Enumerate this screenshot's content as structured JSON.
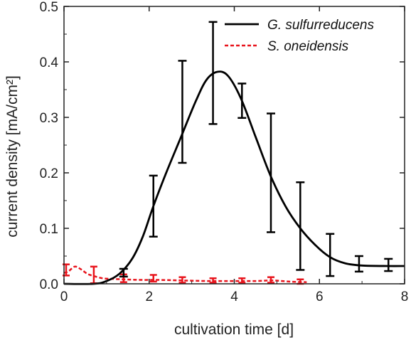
{
  "chart_data": {
    "type": "line",
    "xlabel": "cultivation time [d]",
    "ylabel": "current density [mA/cm²]",
    "xlim": [
      0,
      8
    ],
    "ylim": [
      0,
      0.5
    ],
    "x_ticks": [
      "0",
      "2",
      "4",
      "6",
      "8"
    ],
    "y_ticks": [
      "0.0",
      "0.1",
      "0.2",
      "0.3",
      "0.4",
      "0.5"
    ],
    "grid": false,
    "legend_position": "top-right",
    "series": [
      {
        "name": "G. sulfurreducens",
        "style": "solid",
        "color": "#000000",
        "curve": [
          [
            0,
            0
          ],
          [
            0.7,
            0.0
          ],
          [
            1.0,
            0.005
          ],
          [
            1.3,
            0.018
          ],
          [
            1.6,
            0.045
          ],
          [
            1.85,
            0.085
          ],
          [
            2.1,
            0.14
          ],
          [
            2.4,
            0.2
          ],
          [
            2.75,
            0.265
          ],
          [
            3.1,
            0.33
          ],
          [
            3.35,
            0.368
          ],
          [
            3.6,
            0.382
          ],
          [
            3.85,
            0.375
          ],
          [
            4.15,
            0.335
          ],
          [
            4.5,
            0.265
          ],
          [
            4.85,
            0.195
          ],
          [
            5.2,
            0.14
          ],
          [
            5.55,
            0.1
          ],
          [
            5.9,
            0.07
          ],
          [
            6.25,
            0.048
          ],
          [
            6.6,
            0.037
          ],
          [
            7.0,
            0.033
          ],
          [
            7.6,
            0.032
          ],
          [
            8.0,
            0.032
          ]
        ],
        "points": [
          {
            "x": 1.4,
            "y": 0.02,
            "err": 0.007
          },
          {
            "x": 2.1,
            "y": 0.14,
            "err": 0.055
          },
          {
            "x": 2.78,
            "y": 0.31,
            "err": 0.092
          },
          {
            "x": 3.5,
            "y": 0.38,
            "err": 0.092
          },
          {
            "x": 4.18,
            "y": 0.33,
            "err": 0.031
          },
          {
            "x": 4.86,
            "y": 0.2,
            "err": 0.107
          },
          {
            "x": 5.55,
            "y": 0.104,
            "err": 0.079
          },
          {
            "x": 6.25,
            "y": 0.052,
            "err": 0.038
          },
          {
            "x": 6.93,
            "y": 0.036,
            "err": 0.014
          },
          {
            "x": 7.62,
            "y": 0.034,
            "err": 0.011
          }
        ]
      },
      {
        "name": "S. oneidensis",
        "style": "dashed",
        "color": "#e8141c",
        "curve": [
          [
            0,
            0.02
          ],
          [
            0.1,
            0.022
          ],
          [
            0.25,
            0.031
          ],
          [
            0.4,
            0.026
          ],
          [
            0.55,
            0.018
          ],
          [
            0.7,
            0.014
          ],
          [
            0.9,
            0.01
          ],
          [
            1.1,
            0.009
          ],
          [
            1.4,
            0.008
          ],
          [
            1.8,
            0.007
          ],
          [
            2.2,
            0.007
          ],
          [
            2.8,
            0.006
          ],
          [
            3.4,
            0.005
          ],
          [
            4.0,
            0.005
          ],
          [
            4.5,
            0.005
          ],
          [
            4.9,
            0.006
          ],
          [
            5.3,
            0.004
          ],
          [
            5.7,
            0.003
          ]
        ],
        "points": [
          {
            "x": 0.05,
            "y": 0.025,
            "err": 0.01
          },
          {
            "x": 0.7,
            "y": 0.016,
            "err": 0.015
          },
          {
            "x": 1.4,
            "y": 0.01,
            "err": 0.007
          },
          {
            "x": 2.1,
            "y": 0.01,
            "err": 0.006
          },
          {
            "x": 2.78,
            "y": 0.007,
            "err": 0.005
          },
          {
            "x": 3.5,
            "y": 0.006,
            "err": 0.004
          },
          {
            "x": 4.18,
            "y": 0.006,
            "err": 0.004
          },
          {
            "x": 4.86,
            "y": 0.007,
            "err": 0.005
          },
          {
            "x": 5.55,
            "y": 0.004,
            "err": 0.004
          }
        ]
      }
    ]
  }
}
